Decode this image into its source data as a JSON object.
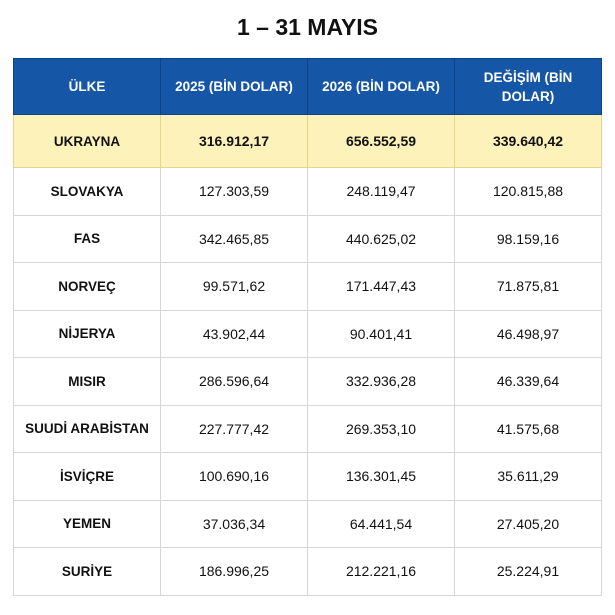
{
  "title": "1 – 31 MAYIS",
  "table": {
    "header": [
      "ÜLKE",
      "2025 (BİN DOLAR)",
      "2026 (BİN DOLAR)",
      "DEĞİŞİM (BİN DOLAR)"
    ],
    "rows": [
      [
        "UKRAYNA",
        "316.912,17",
        "656.552,59",
        "339.640,42"
      ],
      [
        "SLOVAKYA",
        "127.303,59",
        "248.119,47",
        "120.815,88"
      ],
      [
        "FAS",
        "342.465,85",
        "440.625,02",
        "98.159,16"
      ],
      [
        "NORVEÇ",
        "99.571,62",
        "171.447,43",
        "71.875,81"
      ],
      [
        "NİJERYA",
        "43.902,44",
        "90.401,41",
        "46.498,97"
      ],
      [
        "MISIR",
        "286.596,64",
        "332.936,28",
        "46.339,64"
      ],
      [
        "SUUDİ ARABİSTAN",
        "227.777,42",
        "269.353,10",
        "41.575,68"
      ],
      [
        "İSVİÇRE",
        "100.690,16",
        "136.301,45",
        "35.611,29"
      ],
      [
        "YEMEN",
        "37.036,34",
        "64.441,54",
        "27.405,20"
      ],
      [
        "SURİYE",
        "186.996,25",
        "212.221,16",
        "25.224,91"
      ]
    ]
  }
}
